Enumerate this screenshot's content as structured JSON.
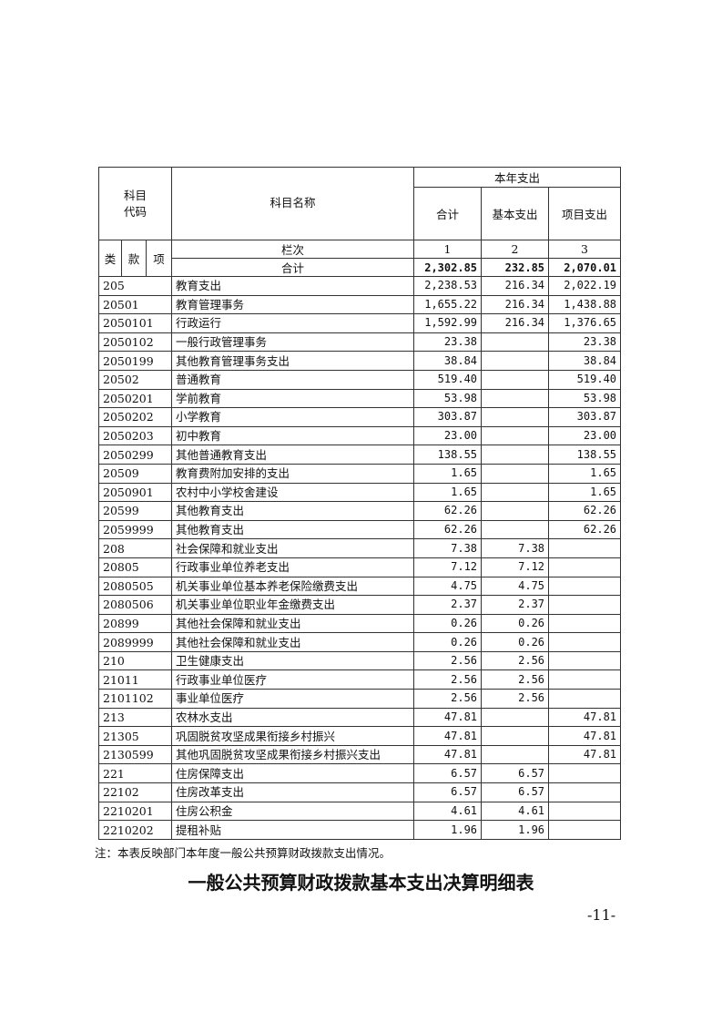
{
  "header": {
    "code_label": "科目\n代码",
    "name_label": "科目名称",
    "group_label": "本年支出",
    "col_total": "合计",
    "col_basic": "基本支出",
    "col_project": "项目支出",
    "lei": "类",
    "kuan": "款",
    "xiang": "项",
    "lanci": "栏次",
    "lanci_1": "1",
    "lanci_2": "2",
    "lanci_3": "3",
    "sum_label": "合计",
    "sum_total": "2,302.85",
    "sum_basic": "232.85",
    "sum_project": "2,070.01"
  },
  "rows": [
    [
      "205",
      "教育支出",
      "2,238.53",
      "216.34",
      "2,022.19"
    ],
    [
      "20501",
      "教育管理事务",
      "1,655.22",
      "216.34",
      "1,438.88"
    ],
    [
      "2050101",
      "行政运行",
      "1,592.99",
      "216.34",
      "1,376.65"
    ],
    [
      "2050102",
      "一般行政管理事务",
      "23.38",
      "",
      "23.38"
    ],
    [
      "2050199",
      "其他教育管理事务支出",
      "38.84",
      "",
      "38.84"
    ],
    [
      "20502",
      "普通教育",
      "519.40",
      "",
      "519.40"
    ],
    [
      "2050201",
      "学前教育",
      "53.98",
      "",
      "53.98"
    ],
    [
      "2050202",
      "小学教育",
      "303.87",
      "",
      "303.87"
    ],
    [
      "2050203",
      "初中教育",
      "23.00",
      "",
      "23.00"
    ],
    [
      "2050299",
      "其他普通教育支出",
      "138.55",
      "",
      "138.55"
    ],
    [
      "20509",
      "教育费附加安排的支出",
      "1.65",
      "",
      "1.65"
    ],
    [
      "2050901",
      "农村中小学校舍建设",
      "1.65",
      "",
      "1.65"
    ],
    [
      "20599",
      "其他教育支出",
      "62.26",
      "",
      "62.26"
    ],
    [
      "2059999",
      "其他教育支出",
      "62.26",
      "",
      "62.26"
    ],
    [
      "208",
      "社会保障和就业支出",
      "7.38",
      "7.38",
      ""
    ],
    [
      "20805",
      "行政事业单位养老支出",
      "7.12",
      "7.12",
      ""
    ],
    [
      "2080505",
      "机关事业单位基本养老保险缴费支出",
      "4.75",
      "4.75",
      ""
    ],
    [
      "2080506",
      "机关事业单位职业年金缴费支出",
      "2.37",
      "2.37",
      ""
    ],
    [
      "20899",
      "其他社会保障和就业支出",
      "0.26",
      "0.26",
      ""
    ],
    [
      "2089999",
      "其他社会保障和就业支出",
      "0.26",
      "0.26",
      ""
    ],
    [
      "210",
      "卫生健康支出",
      "2.56",
      "2.56",
      ""
    ],
    [
      "21011",
      "行政事业单位医疗",
      "2.56",
      "2.56",
      ""
    ],
    [
      "2101102",
      "事业单位医疗",
      "2.56",
      "2.56",
      ""
    ],
    [
      "213",
      "农林水支出",
      "47.81",
      "",
      "47.81"
    ],
    [
      "21305",
      "巩固脱贫攻坚成果衔接乡村振兴",
      "47.81",
      "",
      "47.81"
    ],
    [
      "2130599",
      "其他巩固脱贫攻坚成果衔接乡村振兴支出",
      "47.81",
      "",
      "47.81"
    ],
    [
      "221",
      "住房保障支出",
      "6.57",
      "6.57",
      ""
    ],
    [
      "22102",
      "住房改革支出",
      "6.57",
      "6.57",
      ""
    ],
    [
      "2210201",
      "住房公积金",
      "4.61",
      "4.61",
      ""
    ],
    [
      "2210202",
      "提租补贴",
      "1.96",
      "1.96",
      ""
    ]
  ],
  "footnote": "注：本表反映部门本年度一般公共预算财政拨款支出情况。",
  "title": "一般公共预算财政拨款基本支出决算明细表",
  "page_number": "-11-"
}
